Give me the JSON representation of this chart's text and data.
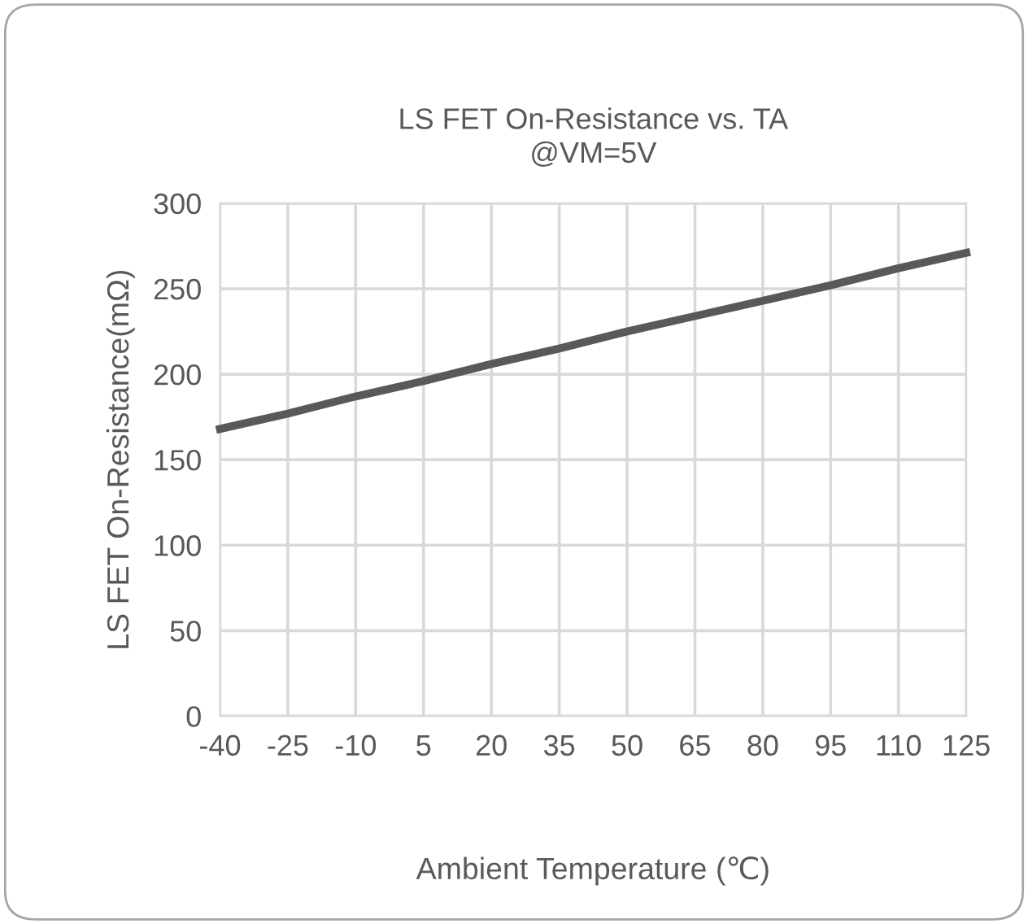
{
  "chart_data": {
    "type": "line",
    "title": "LS FET On-Resistance vs. TA\n@VM=5V",
    "xlabel": "Ambient Temperature (℃)",
    "ylabel": "LS FET On-Resistance(mΩ)",
    "x": [
      -40,
      -25,
      -10,
      5,
      20,
      35,
      50,
      65,
      80,
      95,
      110,
      125
    ],
    "series": [
      {
        "color": "#595959",
        "values": [
          168,
          177,
          187,
          196,
          206,
          215,
          225,
          234,
          243,
          252,
          262,
          271
        ]
      }
    ],
    "xlim": [
      -40,
      125
    ],
    "xticks": [
      -40,
      -25,
      -10,
      5,
      20,
      35,
      50,
      65,
      80,
      95,
      110,
      125
    ],
    "ylim": [
      0,
      300
    ],
    "yticks": [
      0,
      50,
      100,
      150,
      200,
      250,
      300
    ],
    "grid": true,
    "marker": "none",
    "line_style": "solid"
  }
}
